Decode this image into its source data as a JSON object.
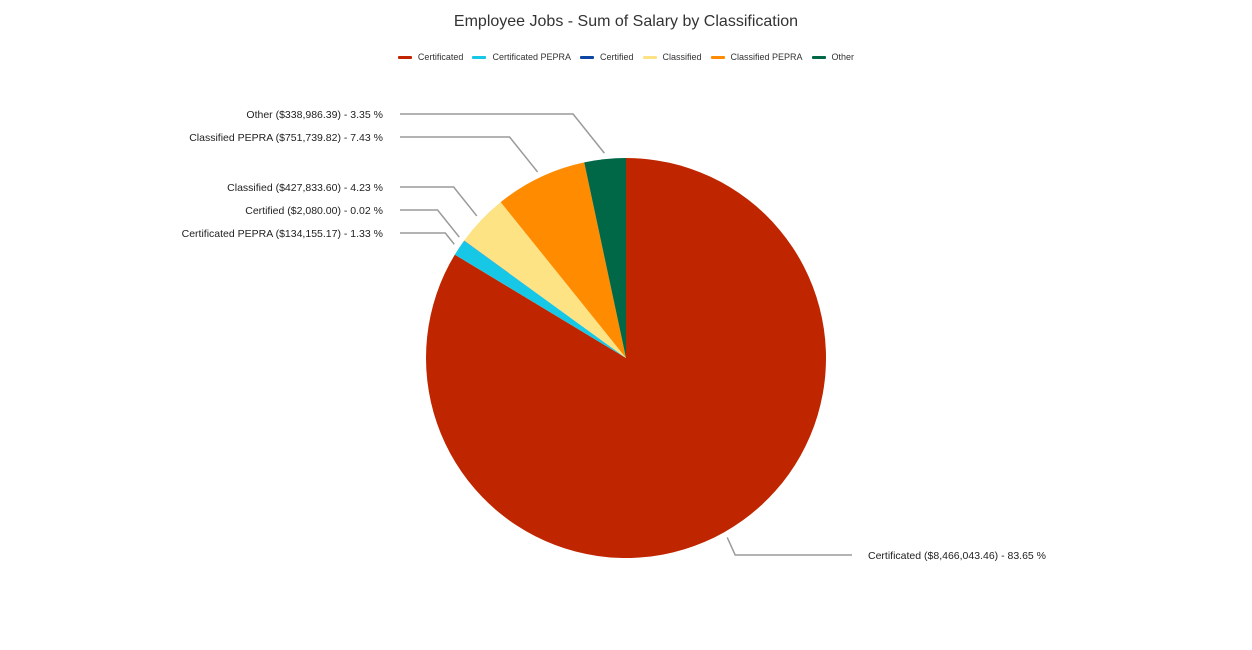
{
  "chart_data": {
    "type": "pie",
    "title": "Employee Jobs - Sum of Salary by Classification",
    "legend_position": "top",
    "slices": [
      {
        "name": "Certificated",
        "value": 8466043.46,
        "percent": 83.65,
        "color": "#bf2600",
        "label": "Certificated ($8,466,043.46) - 83.65 %"
      },
      {
        "name": "Certificated PEPRA",
        "value": 134155.17,
        "percent": 1.33,
        "color": "#17c8e6",
        "label": "Certificated PEPRA ($134,155.17) - 1.33 %"
      },
      {
        "name": "Certified",
        "value": 2080.0,
        "percent": 0.02,
        "color": "#0d47a1",
        "label": "Certified ($2,080.00) - 0.02 %"
      },
      {
        "name": "Classified",
        "value": 427833.6,
        "percent": 4.23,
        "color": "#fde383",
        "label": "Classified ($427,833.60) - 4.23 %"
      },
      {
        "name": "Classified PEPRA",
        "value": 751739.82,
        "percent": 7.43,
        "color": "#ff8c00",
        "label": "Classified PEPRA ($751,739.82) - 7.43 %"
      },
      {
        "name": "Other",
        "value": 338986.39,
        "percent": 3.35,
        "color": "#006847",
        "label": "Other ($338,986.39) - 3.35 %"
      }
    ]
  }
}
